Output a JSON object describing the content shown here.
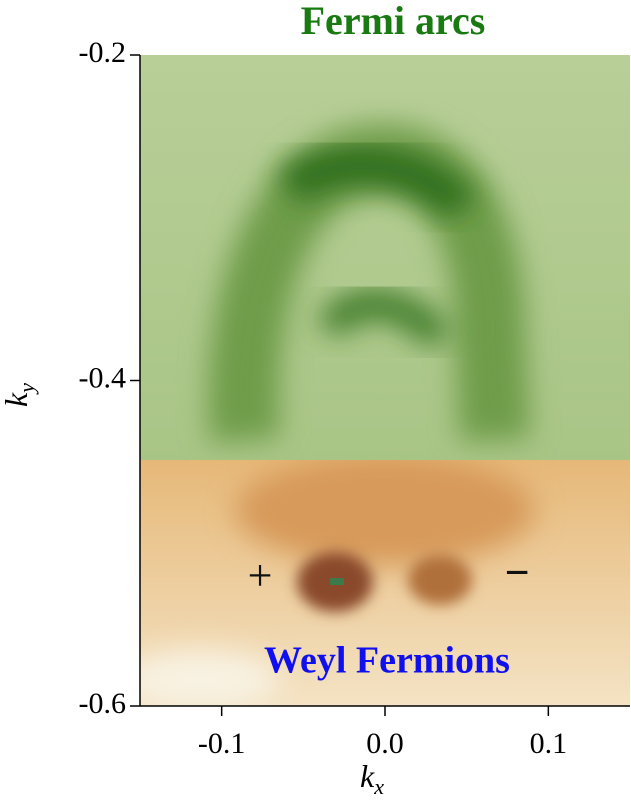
{
  "chart_data": {
    "type": "heatmap",
    "title": "Fermi arcs",
    "title_color": "#1a7a12",
    "annotations": [
      {
        "text": "Weyl Fermions",
        "color": "#1010ee"
      },
      {
        "text": "+",
        "color": "#111111"
      },
      {
        "text": "−",
        "color": "#111111"
      }
    ],
    "xlabel": {
      "symbol": "k",
      "subscript": "x"
    },
    "ylabel": {
      "symbol": "k",
      "subscript": "y"
    },
    "xlim": [
      -0.15,
      0.15
    ],
    "ylim": [
      -0.6,
      -0.2
    ],
    "xticks": [
      -0.1,
      {
        "value": 0,
        "label": "0.0"
      },
      0.1
    ],
    "yticks": [
      -0.2,
      -0.4,
      -0.6
    ]
  }
}
